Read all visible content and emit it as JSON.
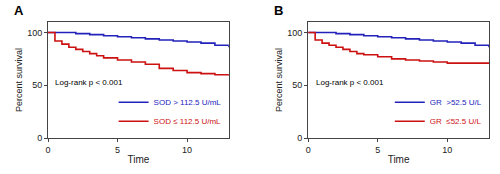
{
  "chart_data": [
    {
      "type": "step",
      "title": "A",
      "xlabel": "Time",
      "ylabel": "Percent survival",
      "xlim": [
        0,
        13
      ],
      "ylim": [
        0,
        110
      ],
      "xticks": [
        0,
        5,
        10
      ],
      "yticks": [
        0,
        50,
        100
      ],
      "grid": false,
      "legend": "lower right",
      "annotation": "Log-rank p < 0.001",
      "series": [
        {
          "name": "SOD > 112.5 U/mL",
          "color": "#2222bb",
          "x": [
            0,
            1,
            2,
            3,
            4,
            5,
            6,
            7,
            8,
            9,
            10,
            11,
            12,
            13
          ],
          "values": [
            100,
            100,
            99,
            98,
            97,
            96,
            95,
            94,
            93,
            92,
            91,
            90,
            88,
            86
          ]
        },
        {
          "name": "SOD ≤ 112.5 U/mL",
          "color": "#cc1111",
          "x": [
            0,
            0.5,
            1,
            1.5,
            2,
            2.5,
            3,
            3.5,
            4,
            5,
            6,
            7,
            8,
            9,
            10,
            11,
            12,
            13
          ],
          "values": [
            100,
            92,
            89,
            86,
            84,
            82,
            80,
            78,
            76,
            74,
            72,
            70,
            66,
            64,
            62,
            61,
            60,
            59
          ]
        }
      ]
    },
    {
      "type": "step",
      "title": "B",
      "xlabel": "Time",
      "ylabel": "Percent survival",
      "xlim": [
        0,
        13
      ],
      "ylim": [
        0,
        110
      ],
      "xticks": [
        0,
        5,
        10
      ],
      "yticks": [
        0,
        50,
        100
      ],
      "grid": false,
      "legend": "lower right",
      "annotation": "Log-rank p < 0.001",
      "series": [
        {
          "name": "GR  >52.5 U/L",
          "color": "#2222bb",
          "x": [
            0,
            1,
            2,
            3,
            4,
            5,
            6,
            7,
            8,
            9,
            10,
            11,
            12,
            13
          ],
          "values": [
            100,
            100,
            99,
            98,
            97,
            96,
            95,
            94,
            93,
            92,
            91,
            90,
            88,
            86
          ]
        },
        {
          "name": "GR  ≤52.5 U/L",
          "color": "#cc1111",
          "x": [
            0,
            0.5,
            1,
            1.5,
            2,
            2.5,
            3,
            3.5,
            4,
            5,
            6,
            7,
            8,
            9,
            10,
            11,
            12,
            13
          ],
          "values": [
            100,
            93,
            90,
            88,
            86,
            84,
            82,
            80,
            79,
            77,
            75,
            74,
            73,
            72,
            71,
            71,
            71,
            71
          ]
        }
      ]
    }
  ]
}
